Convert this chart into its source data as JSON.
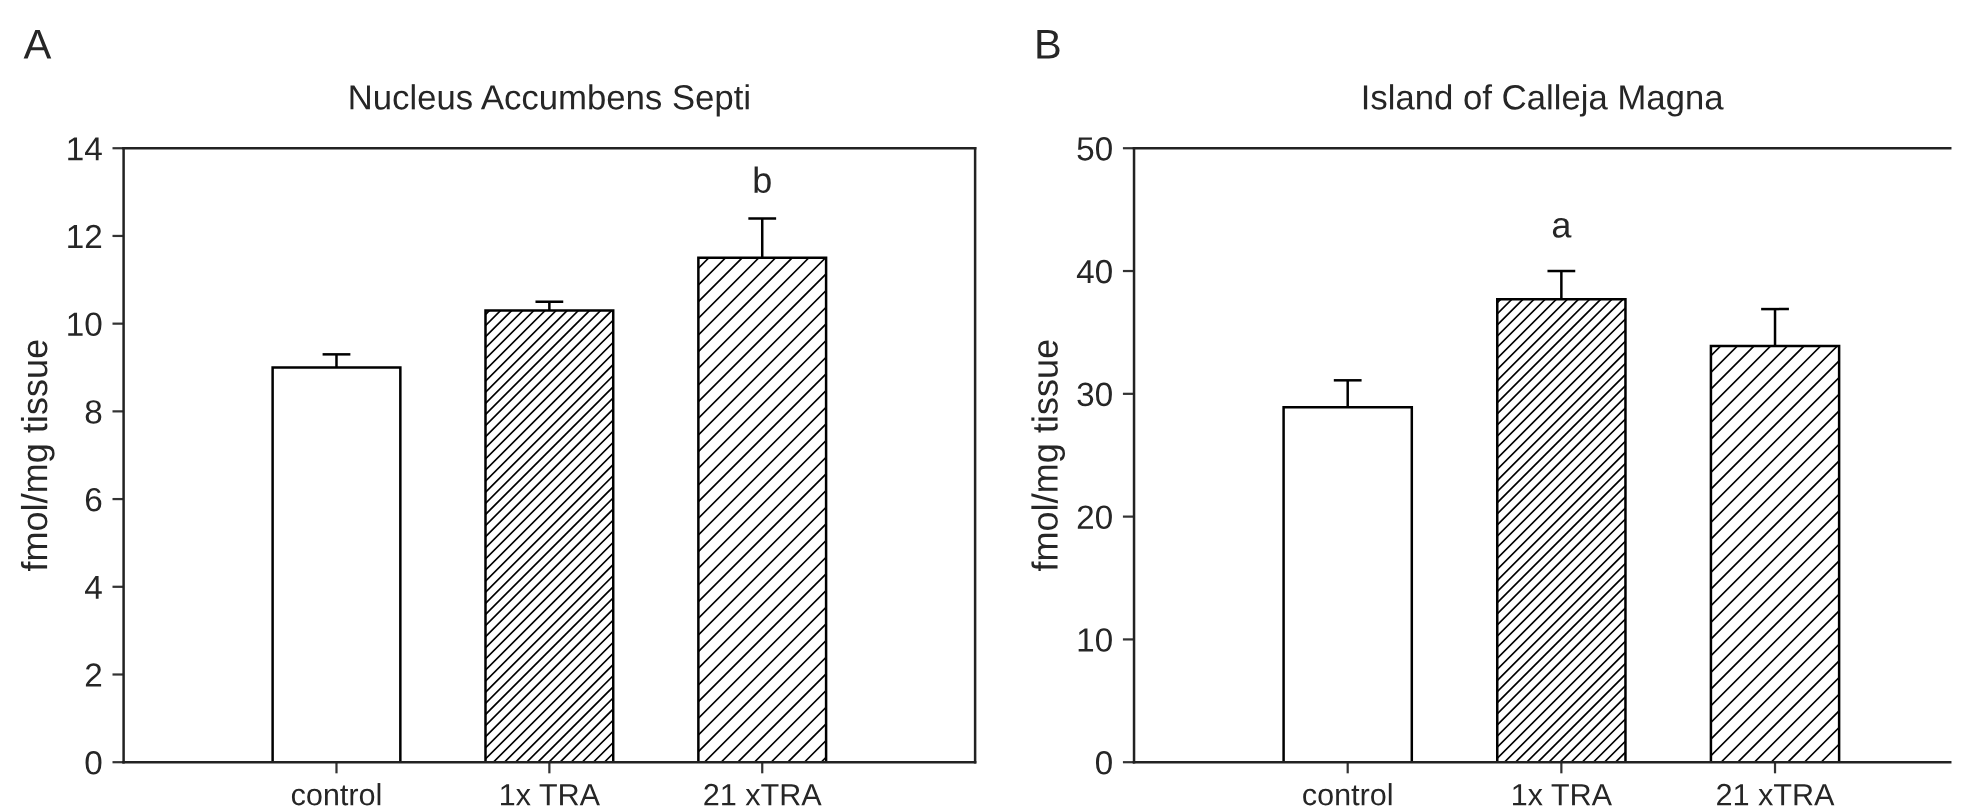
{
  "chart_data": [
    {
      "type": "bar",
      "title": "Nucleus Accumbens Septi",
      "ylabel": "fmol/mg tissue",
      "categories": [
        "control",
        "1x TRA",
        "21 xTRA"
      ],
      "values": [
        9.0,
        10.3,
        11.5
      ],
      "errors": [
        0.3,
        0.2,
        0.9
      ],
      "ylim": [
        0,
        14
      ],
      "yticks": [
        0,
        2,
        4,
        6,
        8,
        10,
        12,
        14
      ],
      "grid": false,
      "annotations": [
        "A",
        "b"
      ]
    },
    {
      "type": "bar",
      "title": "Island of Calleja Magna",
      "ylabel": "fmol/mg tissue",
      "categories": [
        "control",
        "1x TRA",
        "21 xTRA"
      ],
      "values": [
        28.9,
        37.7,
        33.9
      ],
      "errors": [
        2.2,
        2.3,
        3.0
      ],
      "ylim": [
        0,
        50
      ],
      "yticks": [
        0,
        10,
        20,
        30,
        40,
        50
      ],
      "grid": false,
      "annotations": [
        "B",
        "a"
      ]
    }
  ]
}
